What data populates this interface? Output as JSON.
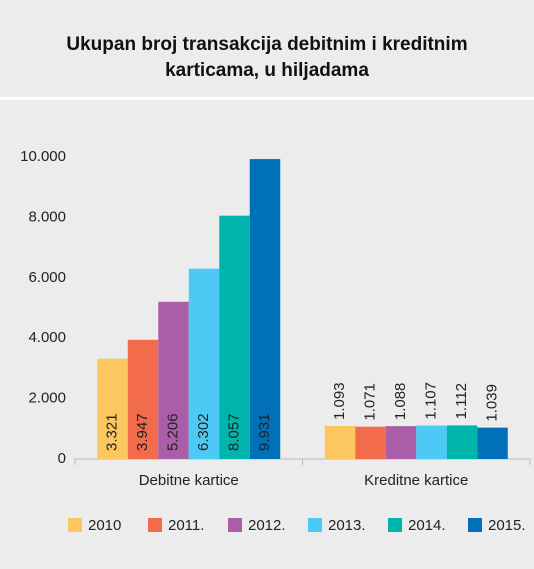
{
  "chart_data": {
    "type": "bar",
    "title": "Ukupan broj transakcija debitnim i kreditnim karticama, u hiljadama",
    "categories": [
      "Debitne kartice",
      "Kreditne kartice"
    ],
    "series": [
      {
        "name": "2010",
        "color": "#fdc75f",
        "values": [
          3321,
          1093
        ],
        "value_labels": [
          "3.321",
          "1.093"
        ]
      },
      {
        "name": "2011.",
        "color": "#f26b4a",
        "values": [
          3947,
          1071
        ],
        "value_labels": [
          "3.947",
          "1.071"
        ]
      },
      {
        "name": "2012.",
        "color": "#ab5ea8",
        "values": [
          5206,
          1088
        ],
        "value_labels": [
          "5.206",
          "1.088"
        ]
      },
      {
        "name": "2013.",
        "color": "#4dc9f5",
        "values": [
          6302,
          1107
        ],
        "value_labels": [
          "6.302",
          "1.107"
        ]
      },
      {
        "name": "2014.",
        "color": "#00b6ac",
        "values": [
          8057,
          1112
        ],
        "value_labels": [
          "8.057",
          "1.112"
        ]
      },
      {
        "name": "2015.",
        "color": "#0070b9",
        "values": [
          9931,
          1039
        ],
        "value_labels": [
          "9.931",
          "1.039"
        ]
      }
    ],
    "ylim": [
      0,
      10000
    ],
    "yticks": [
      0,
      {
        "value": 2000,
        "label": "2.000"
      },
      {
        "value": 4000,
        "label": "4.000"
      },
      {
        "value": 6000,
        "label": "6.000"
      },
      {
        "value": 8000,
        "label": "8.000"
      },
      {
        "value": 10000,
        "label": "10.000"
      }
    ],
    "grid": false,
    "legend": "bottom"
  }
}
